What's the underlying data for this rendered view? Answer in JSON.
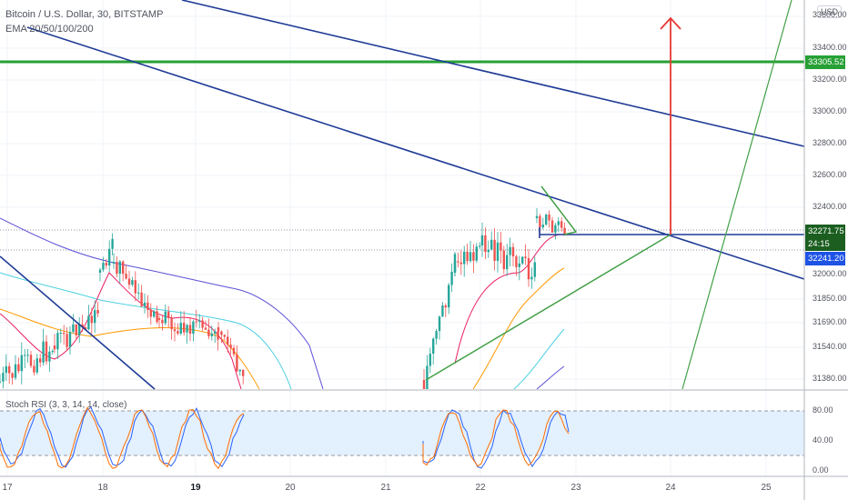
{
  "header": {
    "symbol_line": "Bitcoin / U.S. Dollar, 30, BITSTAMP",
    "ema_line": "EMA 20/50/100/200",
    "currency": "USD"
  },
  "indicator": {
    "label": "Stoch RSI (3, 3, 14, 14, close)"
  },
  "price_axis": {
    "ticks": [
      "33400.00",
      "33200.00",
      "33000.00",
      "32800.00",
      "32600.00",
      "32400.00",
      "32000.00",
      "31850.00",
      "31690.00",
      "31540.00",
      "31380.00"
    ],
    "top_partial": "33600.00"
  },
  "stoch_axis": {
    "ticks": [
      "80.00",
      "40.00",
      "0.00"
    ]
  },
  "time_axis": {
    "labels": [
      "17",
      "18",
      "19",
      "20",
      "21",
      "22",
      "23",
      "24",
      "25"
    ],
    "bold": [
      "19"
    ]
  },
  "badges": {
    "resistance": "33305.52",
    "last_price": "32271.75",
    "countdown": "24:15",
    "current": "32241.20"
  },
  "colors": {
    "resistance_line": "#27a035",
    "trend_lines": "#1f3b96",
    "target_arrow": "#e53935",
    "support_line": "#4caf50",
    "last_price_badge": "#1b5e20",
    "current_badge": "#1e53e5"
  }
}
